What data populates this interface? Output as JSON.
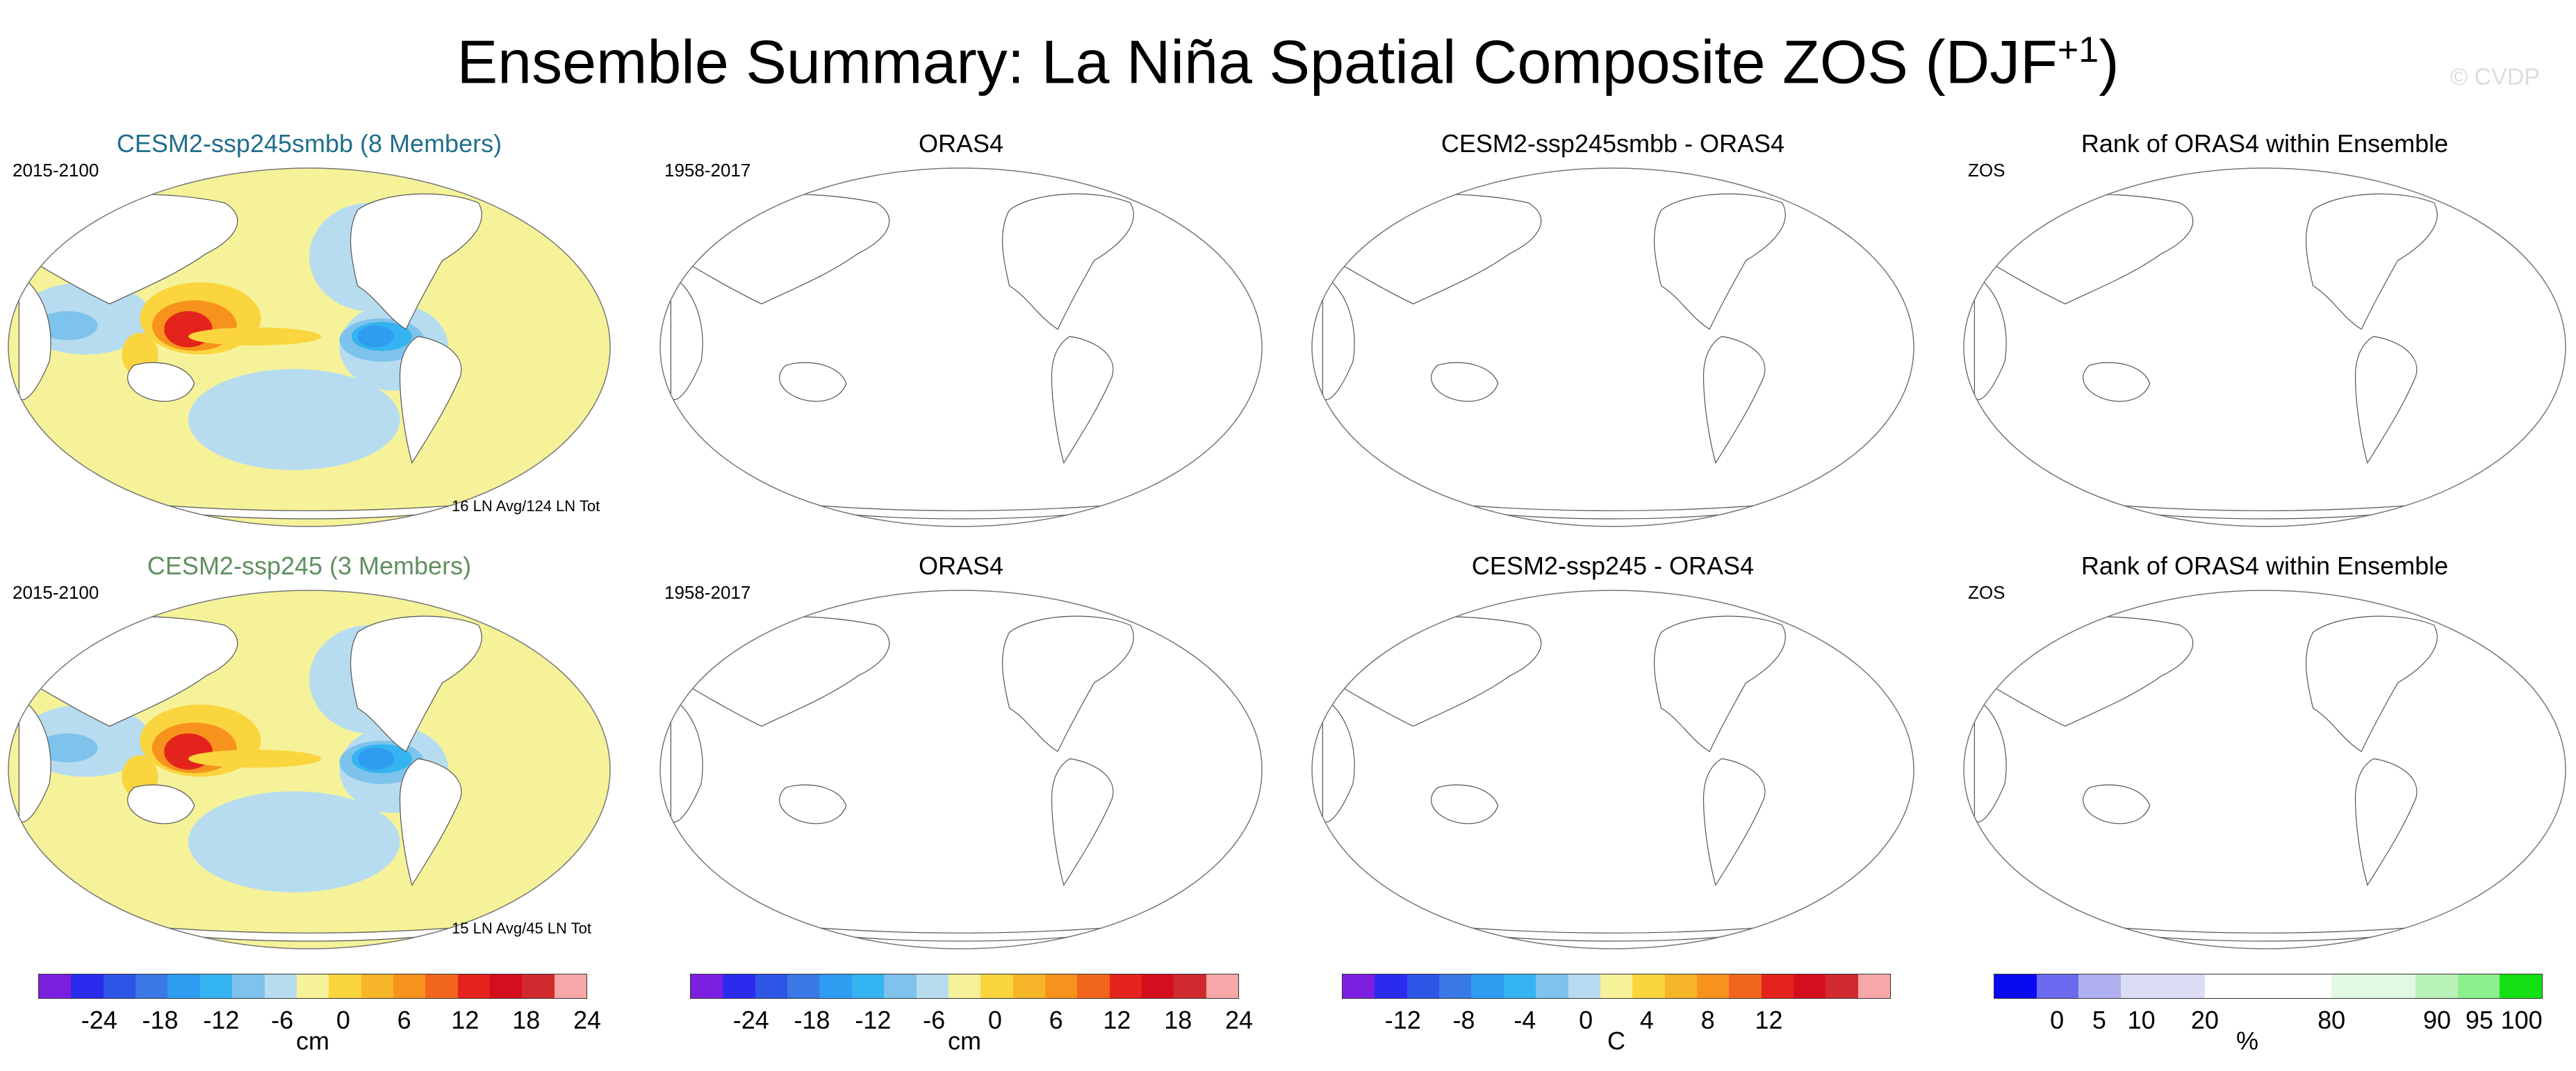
{
  "title": "Ensemble Summary: La Niña Spatial Composite ZOS (DJF",
  "title_sup": "+1",
  "title_close": ")",
  "watermark": "© CVDP",
  "rows": [
    {
      "panels": [
        {
          "title": "CESM2-ssp245smbb (8 Members)",
          "title_color": "#1f6e8c",
          "left_label": "2015-2100",
          "note": "16 LN Avg/124 LN Tot",
          "filled": true
        },
        {
          "title": "ORAS4",
          "title_color": "#000000",
          "left_label": "1958-2017",
          "note": "",
          "filled": false
        },
        {
          "title": "CESM2-ssp245smbb - ORAS4",
          "title_color": "#000000",
          "left_label": "",
          "note": "",
          "filled": false
        },
        {
          "title": "Rank of ORAS4 within Ensemble",
          "title_color": "#000000",
          "left_label": "ZOS",
          "note": "",
          "filled": false
        }
      ]
    },
    {
      "panels": [
        {
          "title": "CESM2-ssp245 (3 Members)",
          "title_color": "#5f8f5f",
          "left_label": "2015-2100",
          "note": "15 LN Avg/45 LN Tot",
          "filled": true
        },
        {
          "title": "ORAS4",
          "title_color": "#000000",
          "left_label": "1958-2017",
          "note": "",
          "filled": false
        },
        {
          "title": "CESM2-ssp245 - ORAS4",
          "title_color": "#000000",
          "left_label": "",
          "note": "",
          "filled": false
        },
        {
          "title": "Rank of ORAS4 within Ensemble",
          "title_color": "#000000",
          "left_label": "ZOS",
          "note": "",
          "filled": false
        }
      ]
    }
  ],
  "colorbars": [
    {
      "colors": [
        "#7d1fe0",
        "#2b2bf0",
        "#2d55e6",
        "#3a78e6",
        "#2e9cf0",
        "#34b4f0",
        "#7ec3ec",
        "#b7dcf0",
        "#f5f29a",
        "#fbd53e",
        "#f7b52a",
        "#f7931d",
        "#f2651d",
        "#e4231c",
        "#d50e1d",
        "#d02a2e",
        "#f7a7a7"
      ],
      "ticks": [
        "-24",
        "-18",
        "-12",
        "-6",
        "0",
        "6",
        "12",
        "18",
        "24"
      ],
      "unit": "cm"
    },
    {
      "colors": [
        "#7d1fe0",
        "#2b2bf0",
        "#2d55e6",
        "#3a78e6",
        "#2e9cf0",
        "#34b4f0",
        "#7ec3ec",
        "#b7dcf0",
        "#f5f29a",
        "#fbd53e",
        "#f7b52a",
        "#f7931d",
        "#f2651d",
        "#e4231c",
        "#d50e1d",
        "#d02a2e",
        "#f7a7a7"
      ],
      "ticks": [
        "-24",
        "-18",
        "-12",
        "-6",
        "0",
        "6",
        "12",
        "18",
        "24"
      ],
      "unit": "cm"
    },
    {
      "colors": [
        "#7d1fe0",
        "#2b2bf0",
        "#2d55e6",
        "#3a78e6",
        "#2e9cf0",
        "#34b4f0",
        "#7ec3ec",
        "#b7dcf0",
        "#f5f29a",
        "#fbd53e",
        "#f7b52a",
        "#f7931d",
        "#f2651d",
        "#e4231c",
        "#d50e1d",
        "#d02a2e",
        "#f7a7a7"
      ],
      "ticks": [
        "-12",
        "-8",
        "-4",
        "0",
        "4",
        "8",
        "12"
      ],
      "unit": "C"
    },
    {
      "colors": [
        "#0a0af0",
        "#6a6af0",
        "#b0b0f0",
        "#dcdcf5",
        "#dcdcf5",
        "#ffffff",
        "#ffffff",
        "#ffffff",
        "#e2f8e2",
        "#e2f8e2",
        "#b8f2b8",
        "#8cf08c",
        "#14e014"
      ],
      "ticks": [
        "0",
        "5",
        "10",
        "20",
        "80",
        "90",
        "95",
        "100"
      ],
      "unit": "%"
    }
  ]
}
